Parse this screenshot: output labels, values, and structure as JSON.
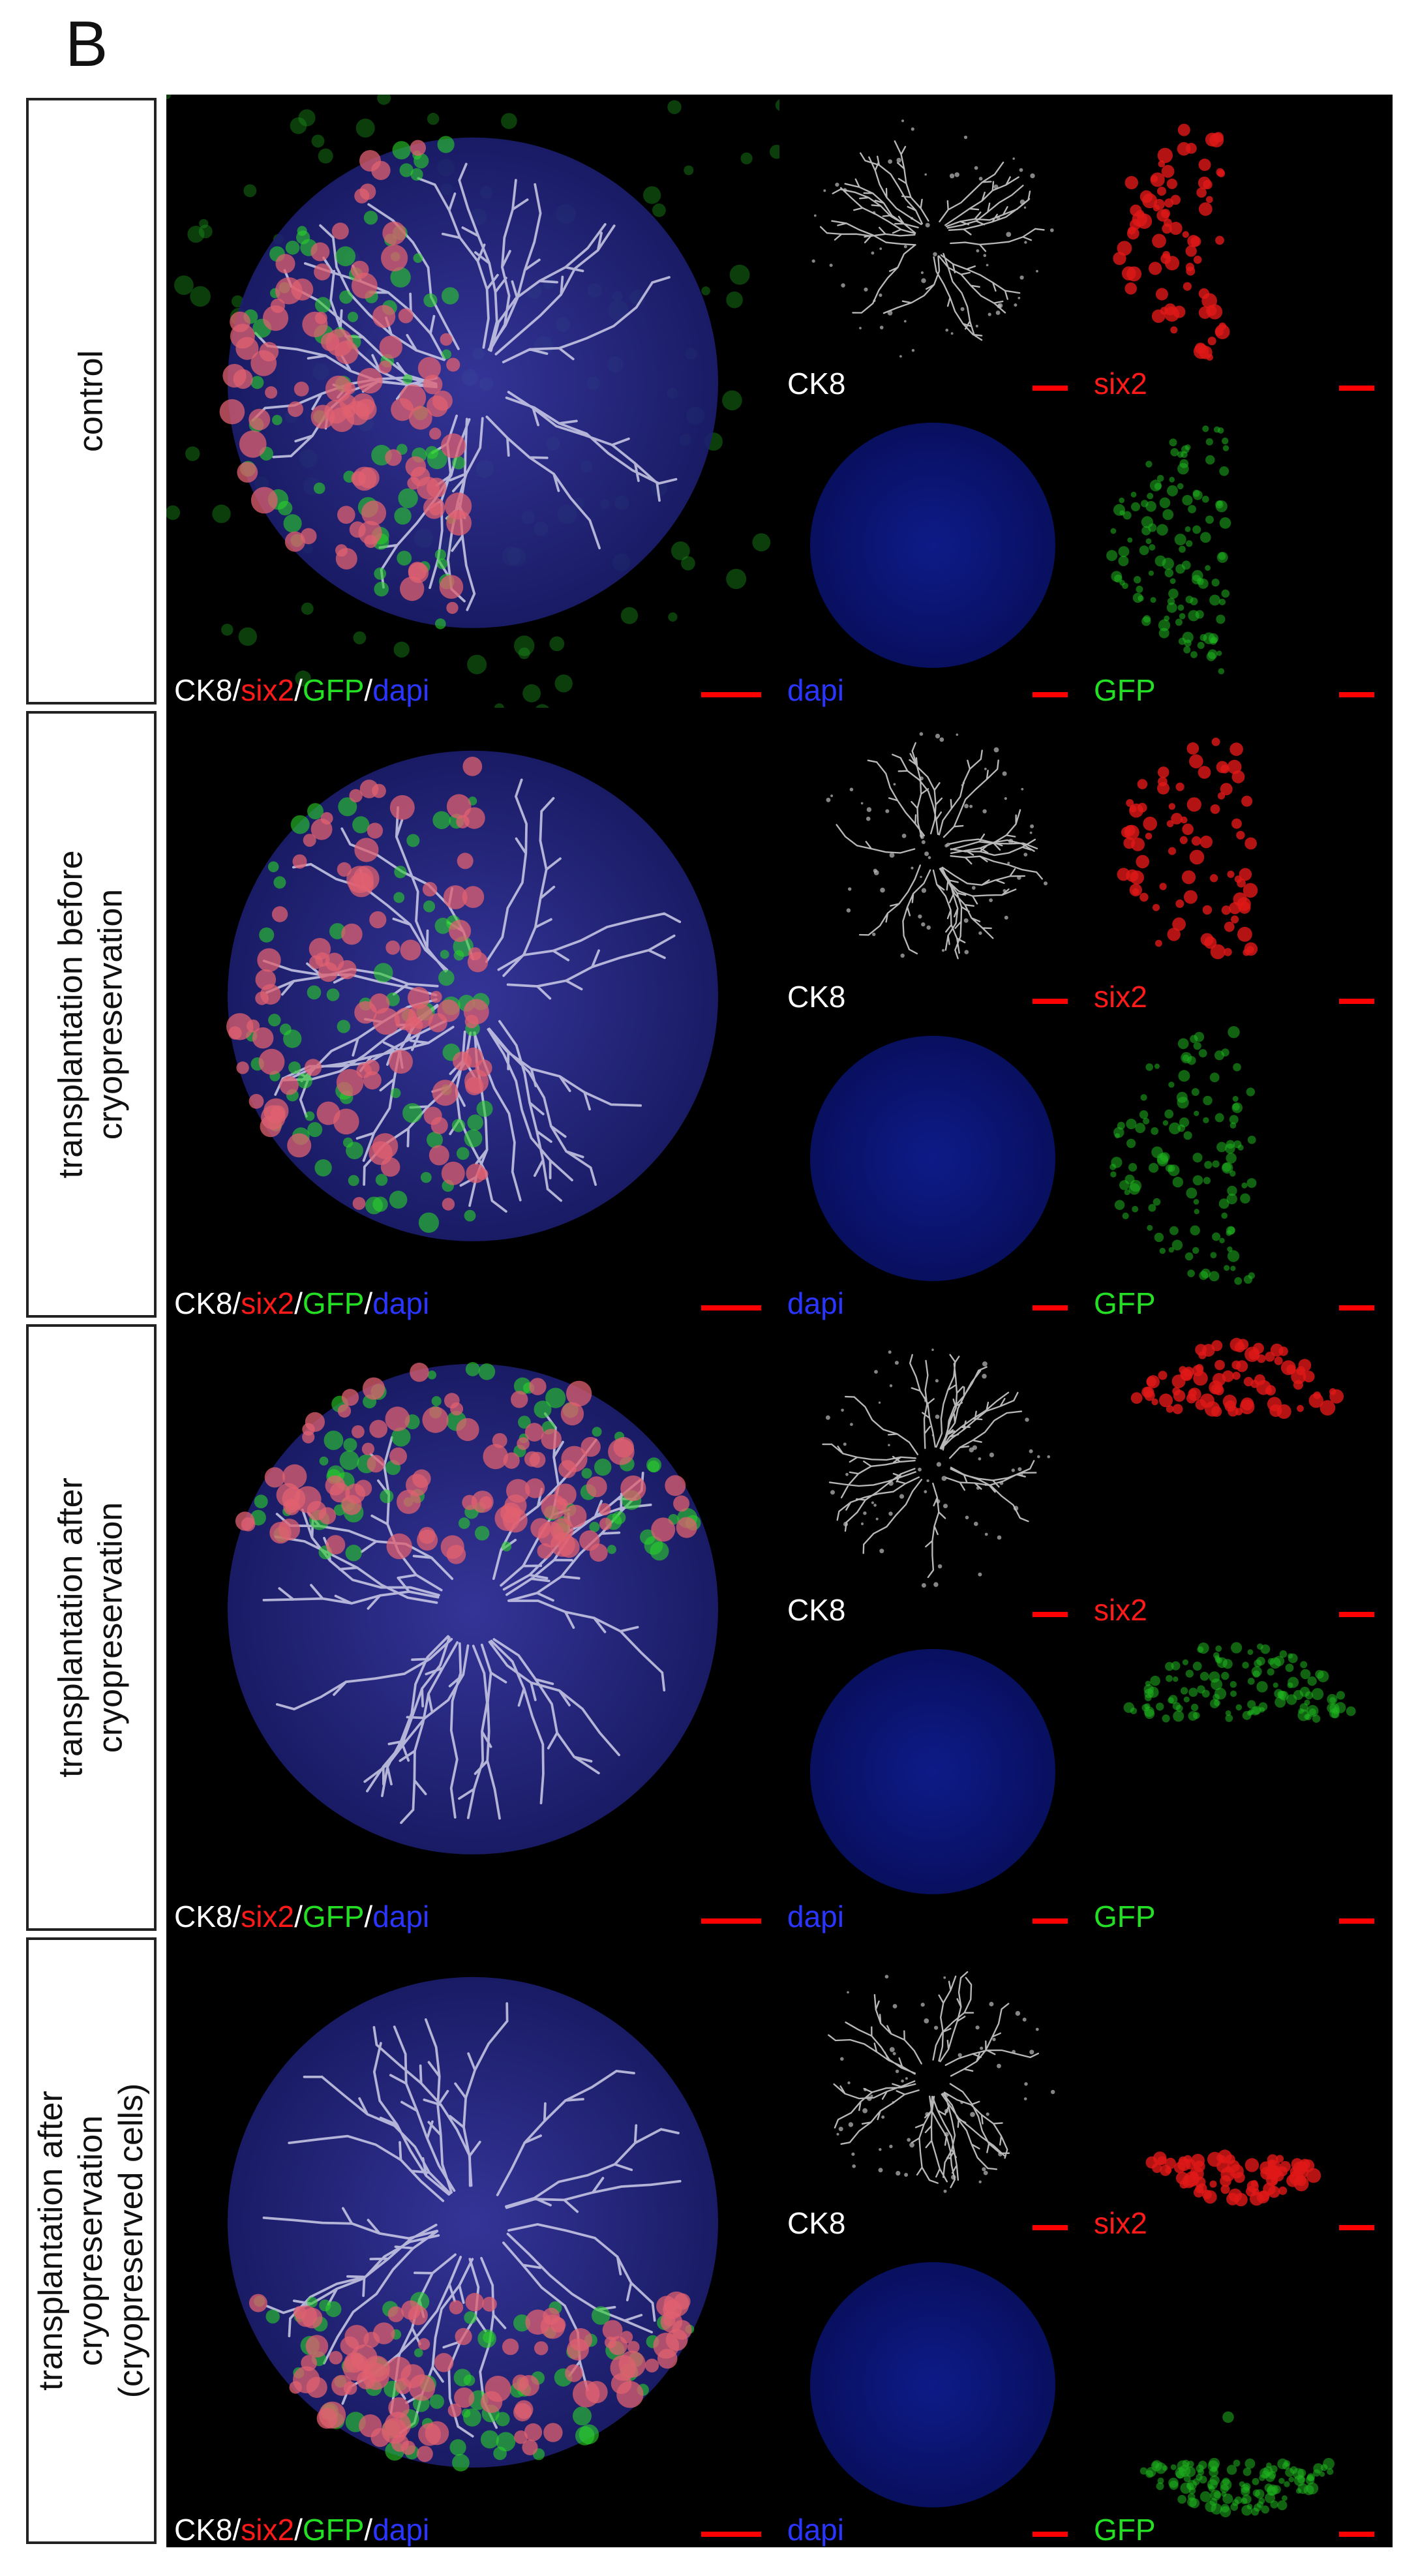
{
  "figure": {
    "panel_letter": "B",
    "channel_colors": {
      "CK8": "#ffffff",
      "six2": "#ff1a1a",
      "GFP": "#24e024",
      "dapi": "#2a35ff"
    },
    "scale_bar_color": "#ff0000",
    "rows": [
      {
        "condition": "control",
        "merged": {
          "ck8": "CK8",
          "sep1": "/",
          "six2": "six2",
          "sep2": "/",
          "gfp": "GFP",
          "sep3": "/",
          "dapi": "dapi"
        },
        "channels": {
          "ck8": "CK8",
          "six2": "six2",
          "dapi": "dapi",
          "gfp": "GFP"
        }
      },
      {
        "condition": "transplantation before cryopreservation",
        "condition_lines": [
          "transplantation before",
          "cryopreservation"
        ],
        "merged": {
          "ck8": "CK8",
          "sep1": "/",
          "six2": "six2",
          "sep2": "/",
          "gfp": "GFP",
          "sep3": "/",
          "dapi": "dapi"
        },
        "channels": {
          "ck8": "CK8",
          "six2": "six2",
          "dapi": "dapi",
          "gfp": "GFP"
        }
      },
      {
        "condition": "transplantation after cryopreservation",
        "condition_lines": [
          "transplantation after",
          "cryopreservation"
        ],
        "merged": {
          "ck8": "CK8",
          "sep1": "/",
          "six2": "six2",
          "sep2": "/",
          "gfp": "GFP",
          "sep3": "/",
          "dapi": "dapi"
        },
        "channels": {
          "ck8": "CK8",
          "six2": "six2",
          "dapi": "dapi",
          "gfp": "GFP"
        }
      },
      {
        "condition": "transplantation after cryopreservation (cryopreserved cells)",
        "condition_lines": [
          "transplantation after",
          "cryopreservation",
          "(cryopreserved cells)"
        ],
        "merged": {
          "ck8": "CK8",
          "sep1": "/",
          "six2": "six2",
          "sep2": "/",
          "gfp": "GFP",
          "sep3": "/",
          "dapi": "dapi"
        },
        "channels": {
          "ck8": "CK8",
          "six2": "six2",
          "dapi": "dapi",
          "gfp": "GFP"
        }
      }
    ]
  }
}
